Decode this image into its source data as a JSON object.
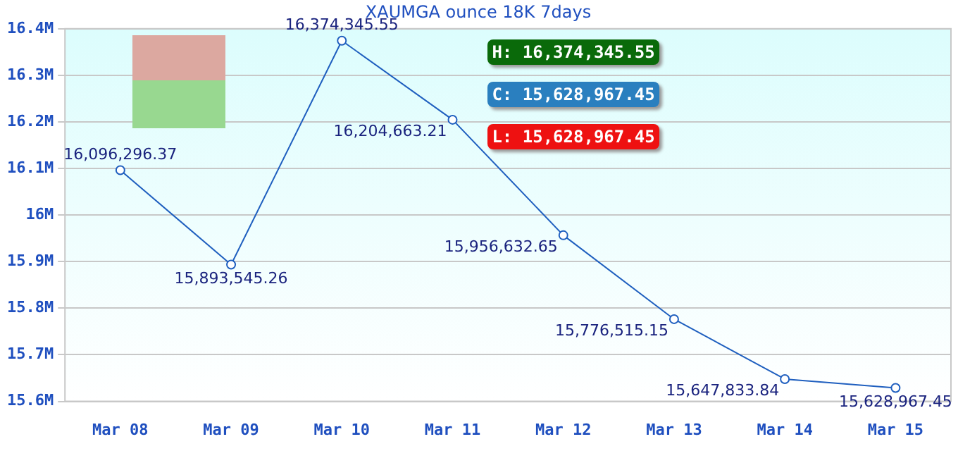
{
  "chart_data": {
    "type": "line",
    "title": "XAUMGA ounce 18K 7days",
    "categories": [
      "Mar 08",
      "Mar 09",
      "Mar 10",
      "Mar 11",
      "Mar 12",
      "Mar 13",
      "Mar 14",
      "Mar 15"
    ],
    "series": [
      {
        "color": "#1f5fbf",
        "values": [
          16096296.37,
          15893545.26,
          16374345.55,
          16204663.21,
          15956632.65,
          15776515.15,
          15647833.84,
          15628967.45
        ],
        "value_labels": [
          "16,096,296.37",
          "15,893,545.26",
          "16,374,345.55",
          "16,204,663.21",
          "15,956,632.65",
          "15,776,515.15",
          "15,647,833.84",
          "15,628,967.45"
        ]
      }
    ],
    "ylim": [
      15600000,
      16400000
    ],
    "yticks": [
      {
        "value": 15600000,
        "label": "15.6M"
      },
      {
        "value": 15700000,
        "label": "15.7M"
      },
      {
        "value": 15800000,
        "label": "15.8M"
      },
      {
        "value": 15900000,
        "label": "15.9M"
      },
      {
        "value": 16000000,
        "label": "16M"
      },
      {
        "value": 16100000,
        "label": "16.1M"
      },
      {
        "value": 16200000,
        "label": "16.2M"
      },
      {
        "value": 16300000,
        "label": "16.3M"
      },
      {
        "value": 16400000,
        "label": "16.4M"
      }
    ],
    "annotations": [
      "H: 16,374,345.55",
      "C: 15,628,967.45",
      "L: 15,628,967.45"
    ],
    "grid": "y",
    "marker": "circle",
    "line_style": "solid",
    "legend": false
  }
}
